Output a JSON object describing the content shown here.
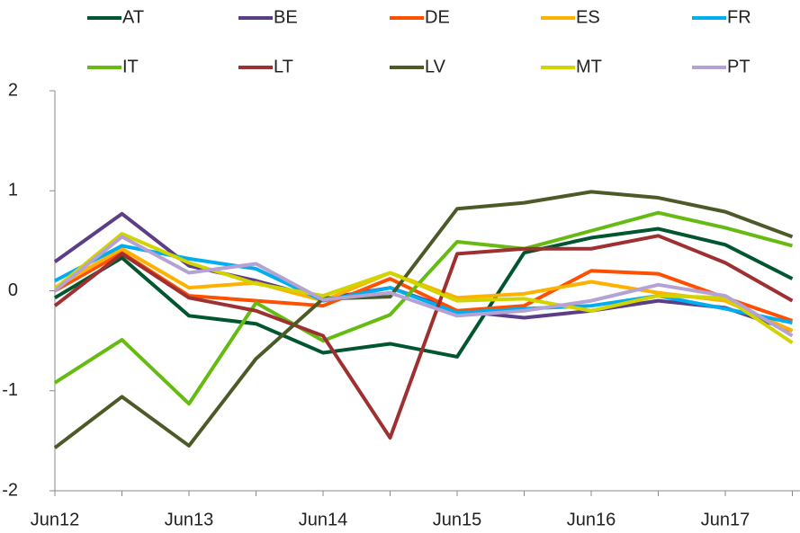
{
  "chart_data": {
    "type": "line",
    "categories": [
      "Jun12",
      null,
      "Jun13",
      null,
      "Jun14",
      null,
      "Jun15",
      null,
      "Jun16",
      null,
      "Jun17",
      null
    ],
    "series": [
      {
        "name": "AT",
        "color": "#00562e",
        "values": [
          -0.07,
          0.33,
          -0.25,
          -0.33,
          -0.62,
          -0.53,
          -0.66,
          0.38,
          0.53,
          0.62,
          0.46,
          0.12
        ]
      },
      {
        "name": "BE",
        "color": "#5c3e87",
        "values": [
          0.29,
          0.77,
          0.25,
          0.1,
          -0.08,
          0.03,
          -0.2,
          -0.27,
          -0.2,
          -0.1,
          -0.17,
          -0.4
        ]
      },
      {
        "name": "DE",
        "color": "#ff4f00",
        "values": [
          0.0,
          0.38,
          -0.05,
          -0.1,
          -0.15,
          0.12,
          -0.2,
          -0.15,
          0.2,
          0.17,
          -0.07,
          -0.3
        ]
      },
      {
        "name": "ES",
        "color": "#ffb100",
        "values": [
          0.03,
          0.42,
          0.03,
          0.08,
          -0.1,
          0.18,
          -0.07,
          -0.03,
          0.09,
          -0.02,
          -0.1,
          -0.4
        ]
      },
      {
        "name": "FR",
        "color": "#00aeef",
        "values": [
          0.1,
          0.45,
          0.32,
          0.22,
          -0.1,
          0.03,
          -0.22,
          -0.18,
          -0.15,
          -0.05,
          -0.18,
          -0.32
        ]
      },
      {
        "name": "IT",
        "color": "#65bb11",
        "values": [
          -0.92,
          -0.49,
          -1.13,
          -0.12,
          -0.5,
          -0.24,
          0.49,
          0.42,
          0.6,
          0.78,
          0.63,
          0.45
        ]
      },
      {
        "name": "LT",
        "color": "#9e3032",
        "values": [
          -0.15,
          0.37,
          -0.07,
          -0.2,
          -0.45,
          -1.47,
          0.37,
          0.42,
          0.42,
          0.55,
          0.28,
          -0.1
        ]
      },
      {
        "name": "LV",
        "color": "#4b5a27",
        "values": [
          -1.57,
          -1.06,
          -1.55,
          -0.68,
          -0.08,
          -0.06,
          0.82,
          0.88,
          0.99,
          0.93,
          0.79,
          0.54
        ]
      },
      {
        "name": "MT",
        "color": "#d2d400",
        "values": [
          0.02,
          0.57,
          0.28,
          0.07,
          -0.05,
          0.18,
          -0.1,
          -0.08,
          -0.2,
          -0.05,
          -0.07,
          -0.52
        ]
      },
      {
        "name": "PT",
        "color": "#b3a2d3",
        "values": [
          0.0,
          0.54,
          0.18,
          0.27,
          -0.09,
          -0.02,
          -0.25,
          -0.2,
          -0.1,
          0.06,
          -0.05,
          -0.45
        ]
      }
    ],
    "ylim": [
      -2,
      2
    ],
    "yticks": [
      -2,
      -1,
      0,
      1,
      2
    ],
    "grid": false
  }
}
